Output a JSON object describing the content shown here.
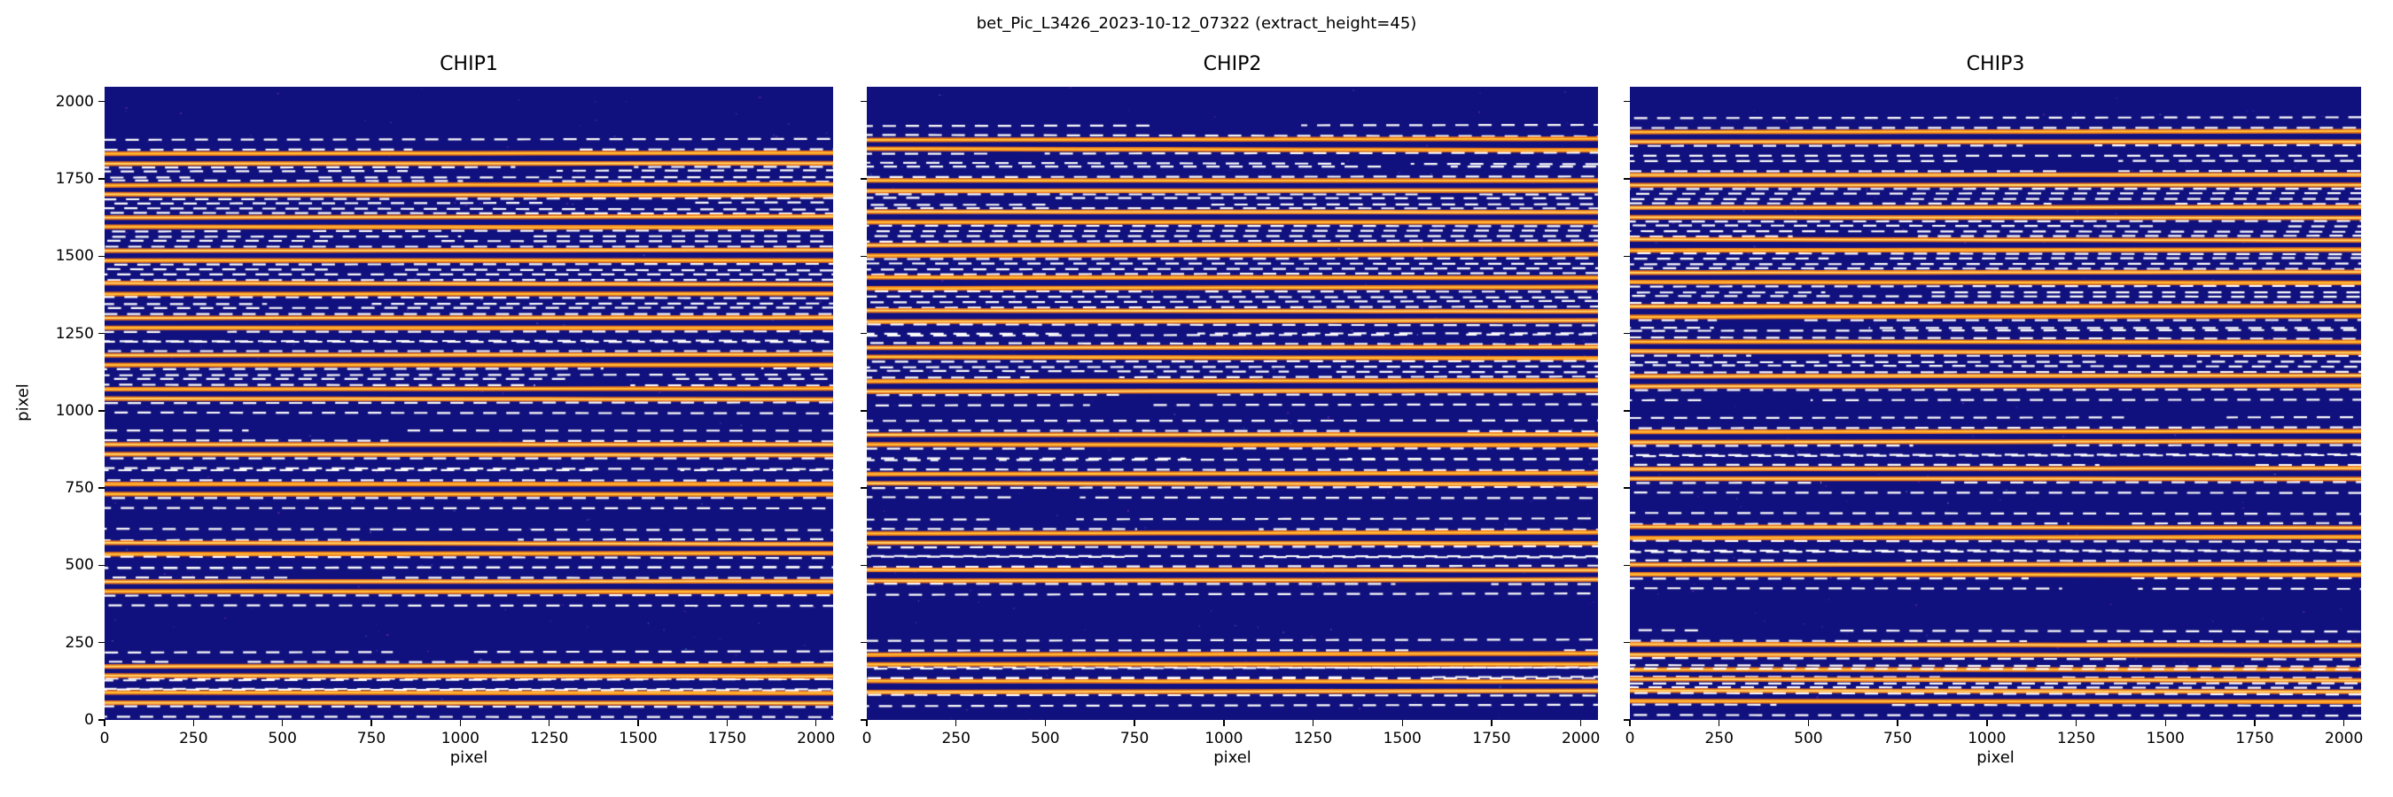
{
  "chart_data": {
    "type": "heatmap",
    "title": "bet_Pic_L3426_2023-10-12_07322  (extract_height=45)",
    "extract_height": 45,
    "axes": {
      "xlabel": "pixel",
      "ylabel": "pixel",
      "xlim": [
        0,
        2048
      ],
      "ylim": [
        0,
        2048
      ],
      "xticks": [
        0,
        250,
        500,
        750,
        1000,
        1250,
        1500,
        1750,
        2000
      ],
      "yticks": [
        0,
        250,
        500,
        750,
        1000,
        1250,
        1500,
        1750,
        2000
      ],
      "grid": false
    },
    "legend": "none",
    "description": "Three echelle spectrograph detector frames with extracted order traces (solid orange) and extraction window boundaries at trace ±45 px (dashed white).",
    "panels": [
      {
        "title": "CHIP1",
        "trace_y": [
          55,
          88,
          142,
          175,
          415,
          448,
          538,
          571,
          730,
          763,
          858,
          891,
          1038,
          1071,
          1148,
          1181,
          1268,
          1301,
          1378,
          1411,
          1486,
          1519,
          1594,
          1627,
          1698,
          1731,
          1800,
          1833
        ]
      },
      {
        "title": "CHIP2",
        "trace_y": [
          92,
          125,
          180,
          213,
          452,
          485,
          572,
          605,
          764,
          797,
          890,
          923,
          1064,
          1097,
          1172,
          1205,
          1290,
          1323,
          1398,
          1431,
          1504,
          1537,
          1610,
          1643,
          1712,
          1745,
          1845,
          1878
        ]
      },
      {
        "title": "CHIP3",
        "trace_y": [
          60,
          93,
          130,
          163,
          210,
          243,
          470,
          503,
          590,
          623,
          780,
          813,
          900,
          933,
          1080,
          1113,
          1190,
          1223,
          1305,
          1338,
          1415,
          1448,
          1520,
          1553,
          1625,
          1658,
          1730,
          1763,
          1870,
          1903
        ]
      }
    ],
    "colors": {
      "figure_background": "#ffffff",
      "detector_background": "#10107e",
      "trace": "#ef7617",
      "trace_core": "#ffc83d",
      "extraction_window": "#ffffff",
      "text": "#000000"
    }
  }
}
